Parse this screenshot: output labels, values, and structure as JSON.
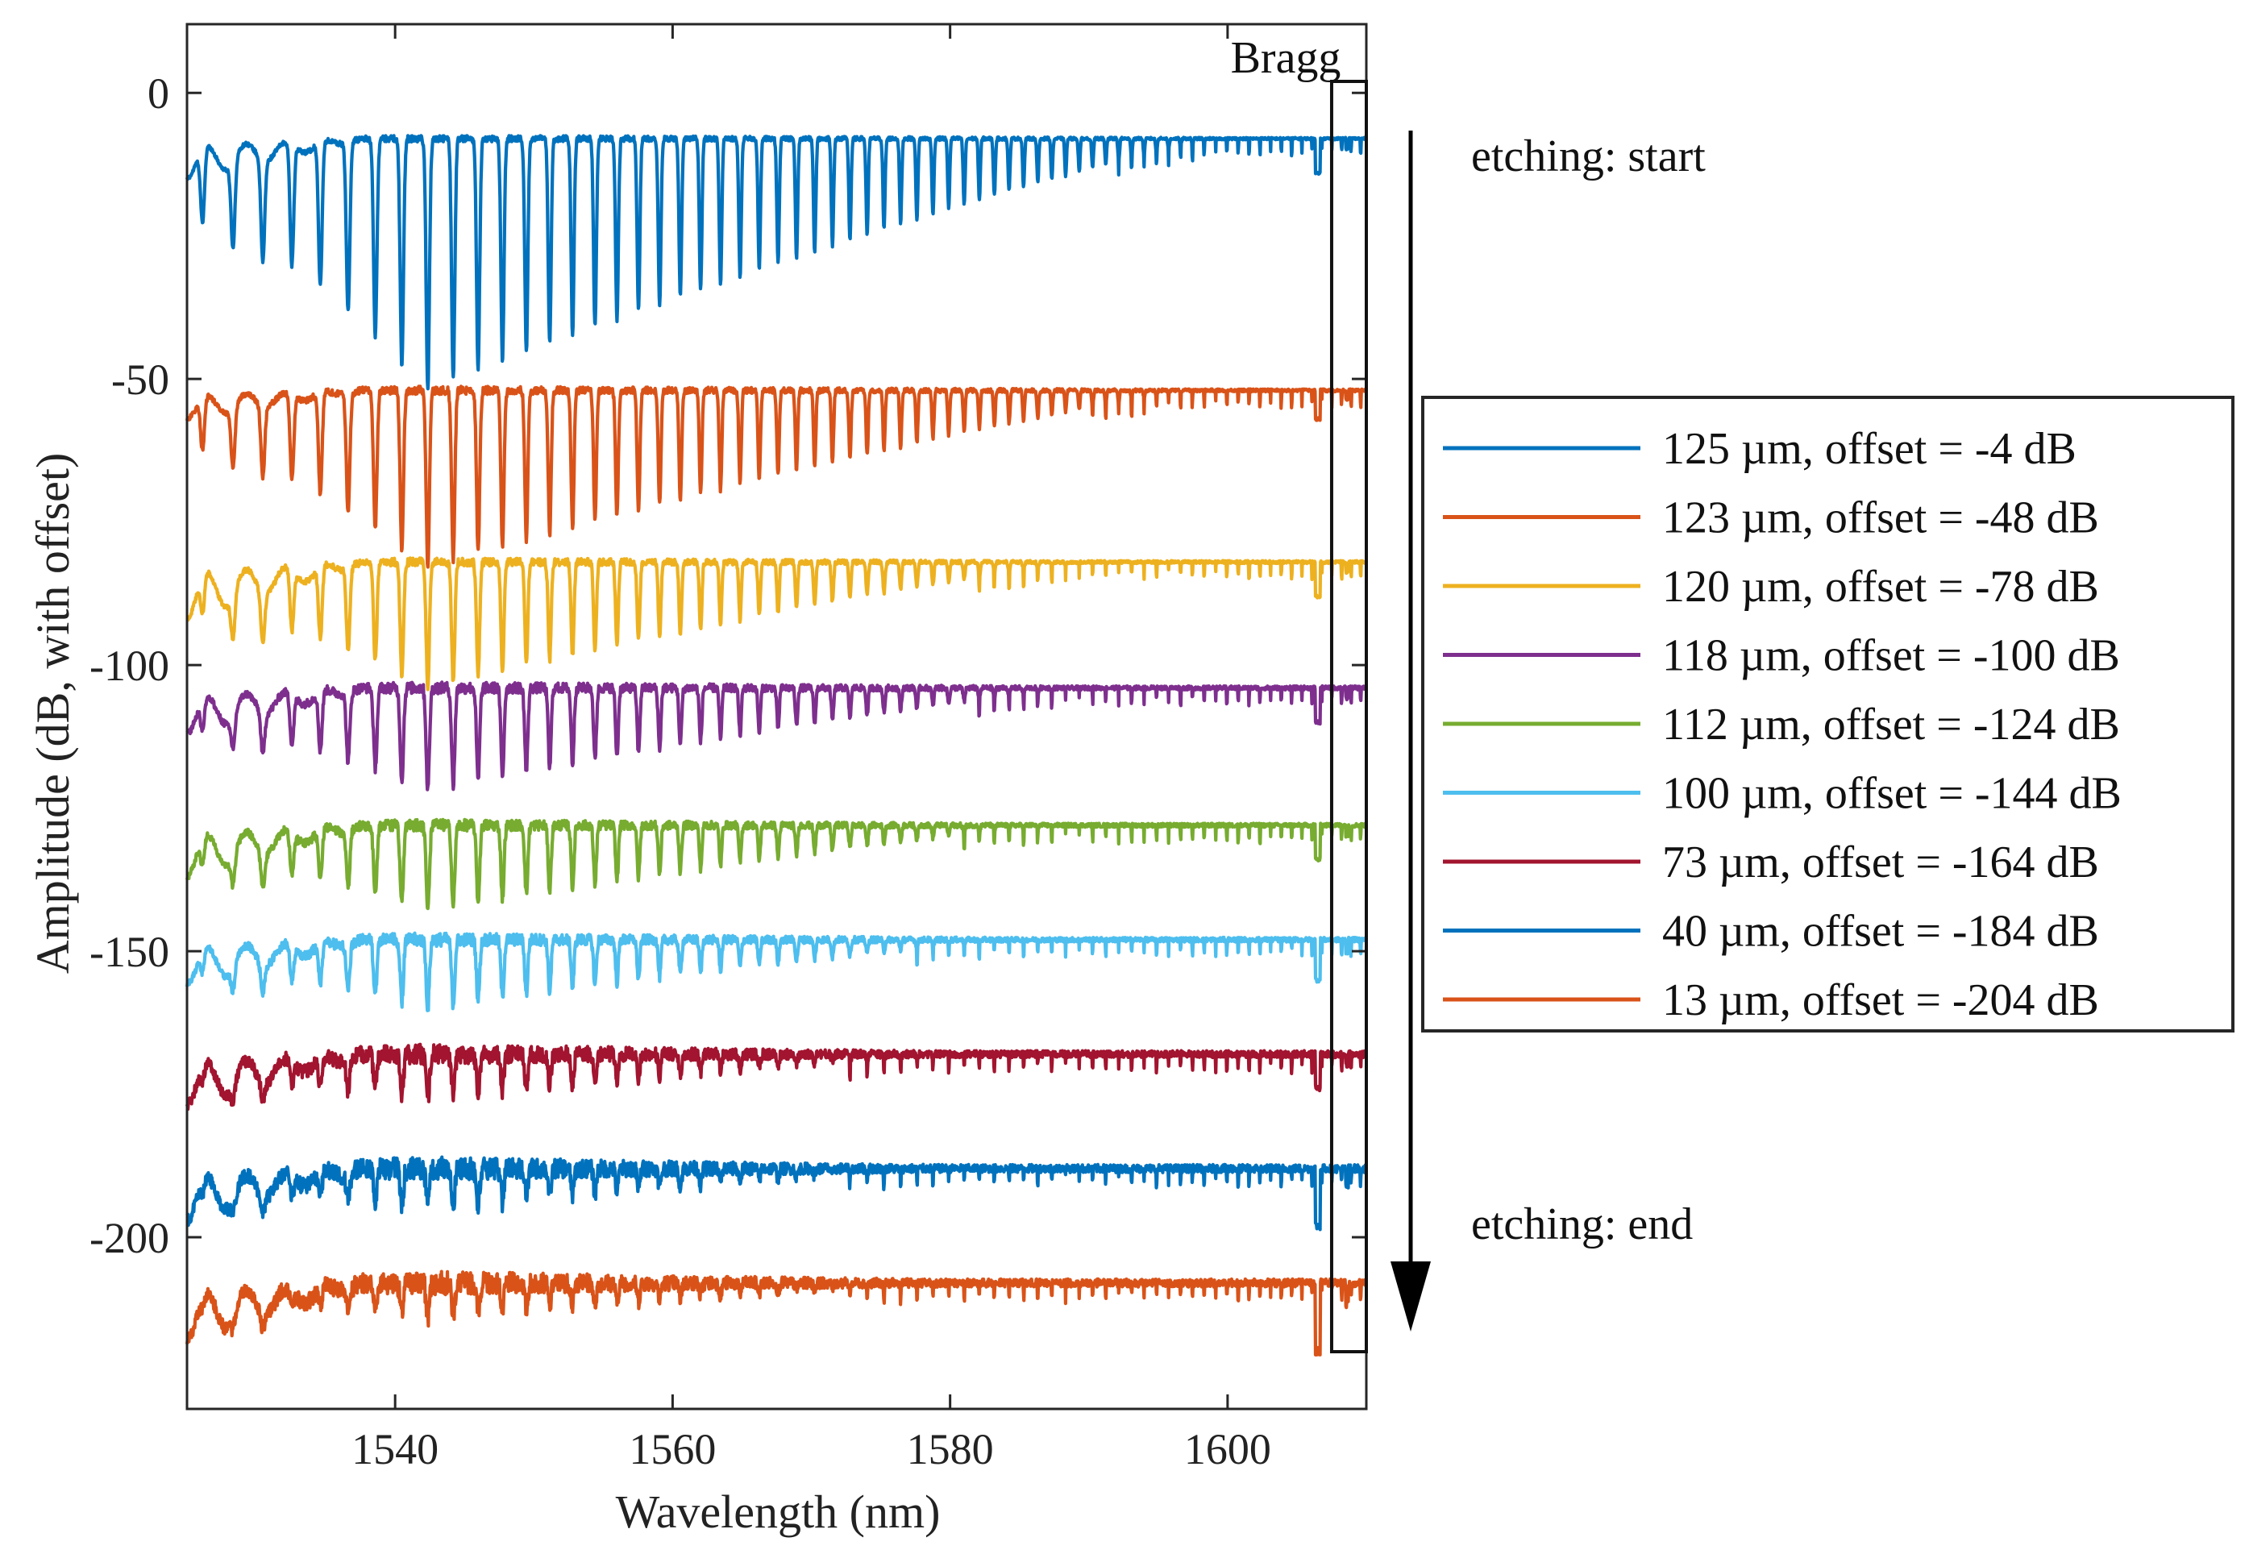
{
  "chart_data": {
    "type": "line",
    "title": "",
    "xlabel": "Wavelength (nm)",
    "ylabel": "Amplitude (dB, with offset)",
    "xlim": [
      1525,
      1610
    ],
    "ylim": [
      -230,
      12
    ],
    "x_ticks": [
      1540,
      1560,
      1580,
      1600
    ],
    "x_tick_labels": [
      "1540",
      "1560",
      "1580",
      "1600"
    ],
    "y_ticks": [
      0,
      -50,
      -100,
      -150,
      -200
    ],
    "y_tick_labels": [
      "0",
      "-50",
      "-100",
      "-150",
      "-200"
    ],
    "grid": false,
    "legend_position": "right",
    "bragg_window": {
      "label": "Bragg",
      "x_range": [
        1607.5,
        1610
      ],
      "y_range": [
        -220,
        2
      ]
    },
    "annotations": {
      "start": "etching: start",
      "end": "etching: end"
    },
    "series": [
      {
        "name": "125 µm, offset = -4 dB",
        "color": "#0072BD",
        "baseline": -8,
        "max_depth": 44,
        "decay_end": 1600,
        "roll_amp": 6,
        "noise": 0.4,
        "bragg_dip": 6,
        "start_level": -15
      },
      {
        "name": "123 µm, offset = -48 dB",
        "color": "#D95319",
        "baseline": -52,
        "max_depth": 31,
        "decay_end": 1598,
        "roll_amp": 4,
        "noise": 0.5,
        "bragg_dip": 5,
        "start_level": -57
      },
      {
        "name": "120 µm, offset = -78 dB",
        "color": "#EDB120",
        "baseline": -82,
        "max_depth": 22,
        "decay_end": 1590,
        "roll_amp": 4,
        "noise": 0.5,
        "bragg_dip": 6,
        "start_level": -92
      },
      {
        "name": "118 µm, offset = -100 dB",
        "color": "#7E2F8E",
        "baseline": -104,
        "max_depth": 18,
        "decay_end": 1590,
        "roll_amp": 4,
        "noise": 0.7,
        "bragg_dip": 6,
        "start_level": -112
      },
      {
        "name": "112 µm, offset = -124 dB",
        "color": "#77AC30",
        "baseline": -128,
        "max_depth": 15,
        "decay_end": 1588,
        "roll_amp": 4,
        "noise": 0.7,
        "bragg_dip": 6,
        "start_level": -137
      },
      {
        "name": "100 µm, offset = -144 dB",
        "color": "#4DBEEE",
        "baseline": -148,
        "max_depth": 12,
        "decay_end": 1585,
        "roll_amp": 4,
        "noise": 0.8,
        "bragg_dip": 7,
        "start_level": -156
      },
      {
        "name": "73 µm, offset = -164 dB",
        "color": "#A2142F",
        "baseline": -168,
        "max_depth": 8,
        "decay_end": 1580,
        "roll_amp": 4,
        "noise": 1.2,
        "bragg_dip": 6,
        "start_level": -177
      },
      {
        "name": "40 µm, offset = -184 dB",
        "color": "#0072BD",
        "baseline": -188,
        "max_depth": 7,
        "decay_end": 1580,
        "roll_amp": 4,
        "noise": 1.4,
        "bragg_dip": 10,
        "start_level": -197
      },
      {
        "name": "13  µm, offset = -204 dB",
        "color": "#D95319",
        "baseline": -208,
        "max_depth": 6,
        "decay_end": 1580,
        "roll_amp": 4,
        "noise": 1.4,
        "bragg_dip": 12,
        "start_level": -218
      }
    ]
  }
}
